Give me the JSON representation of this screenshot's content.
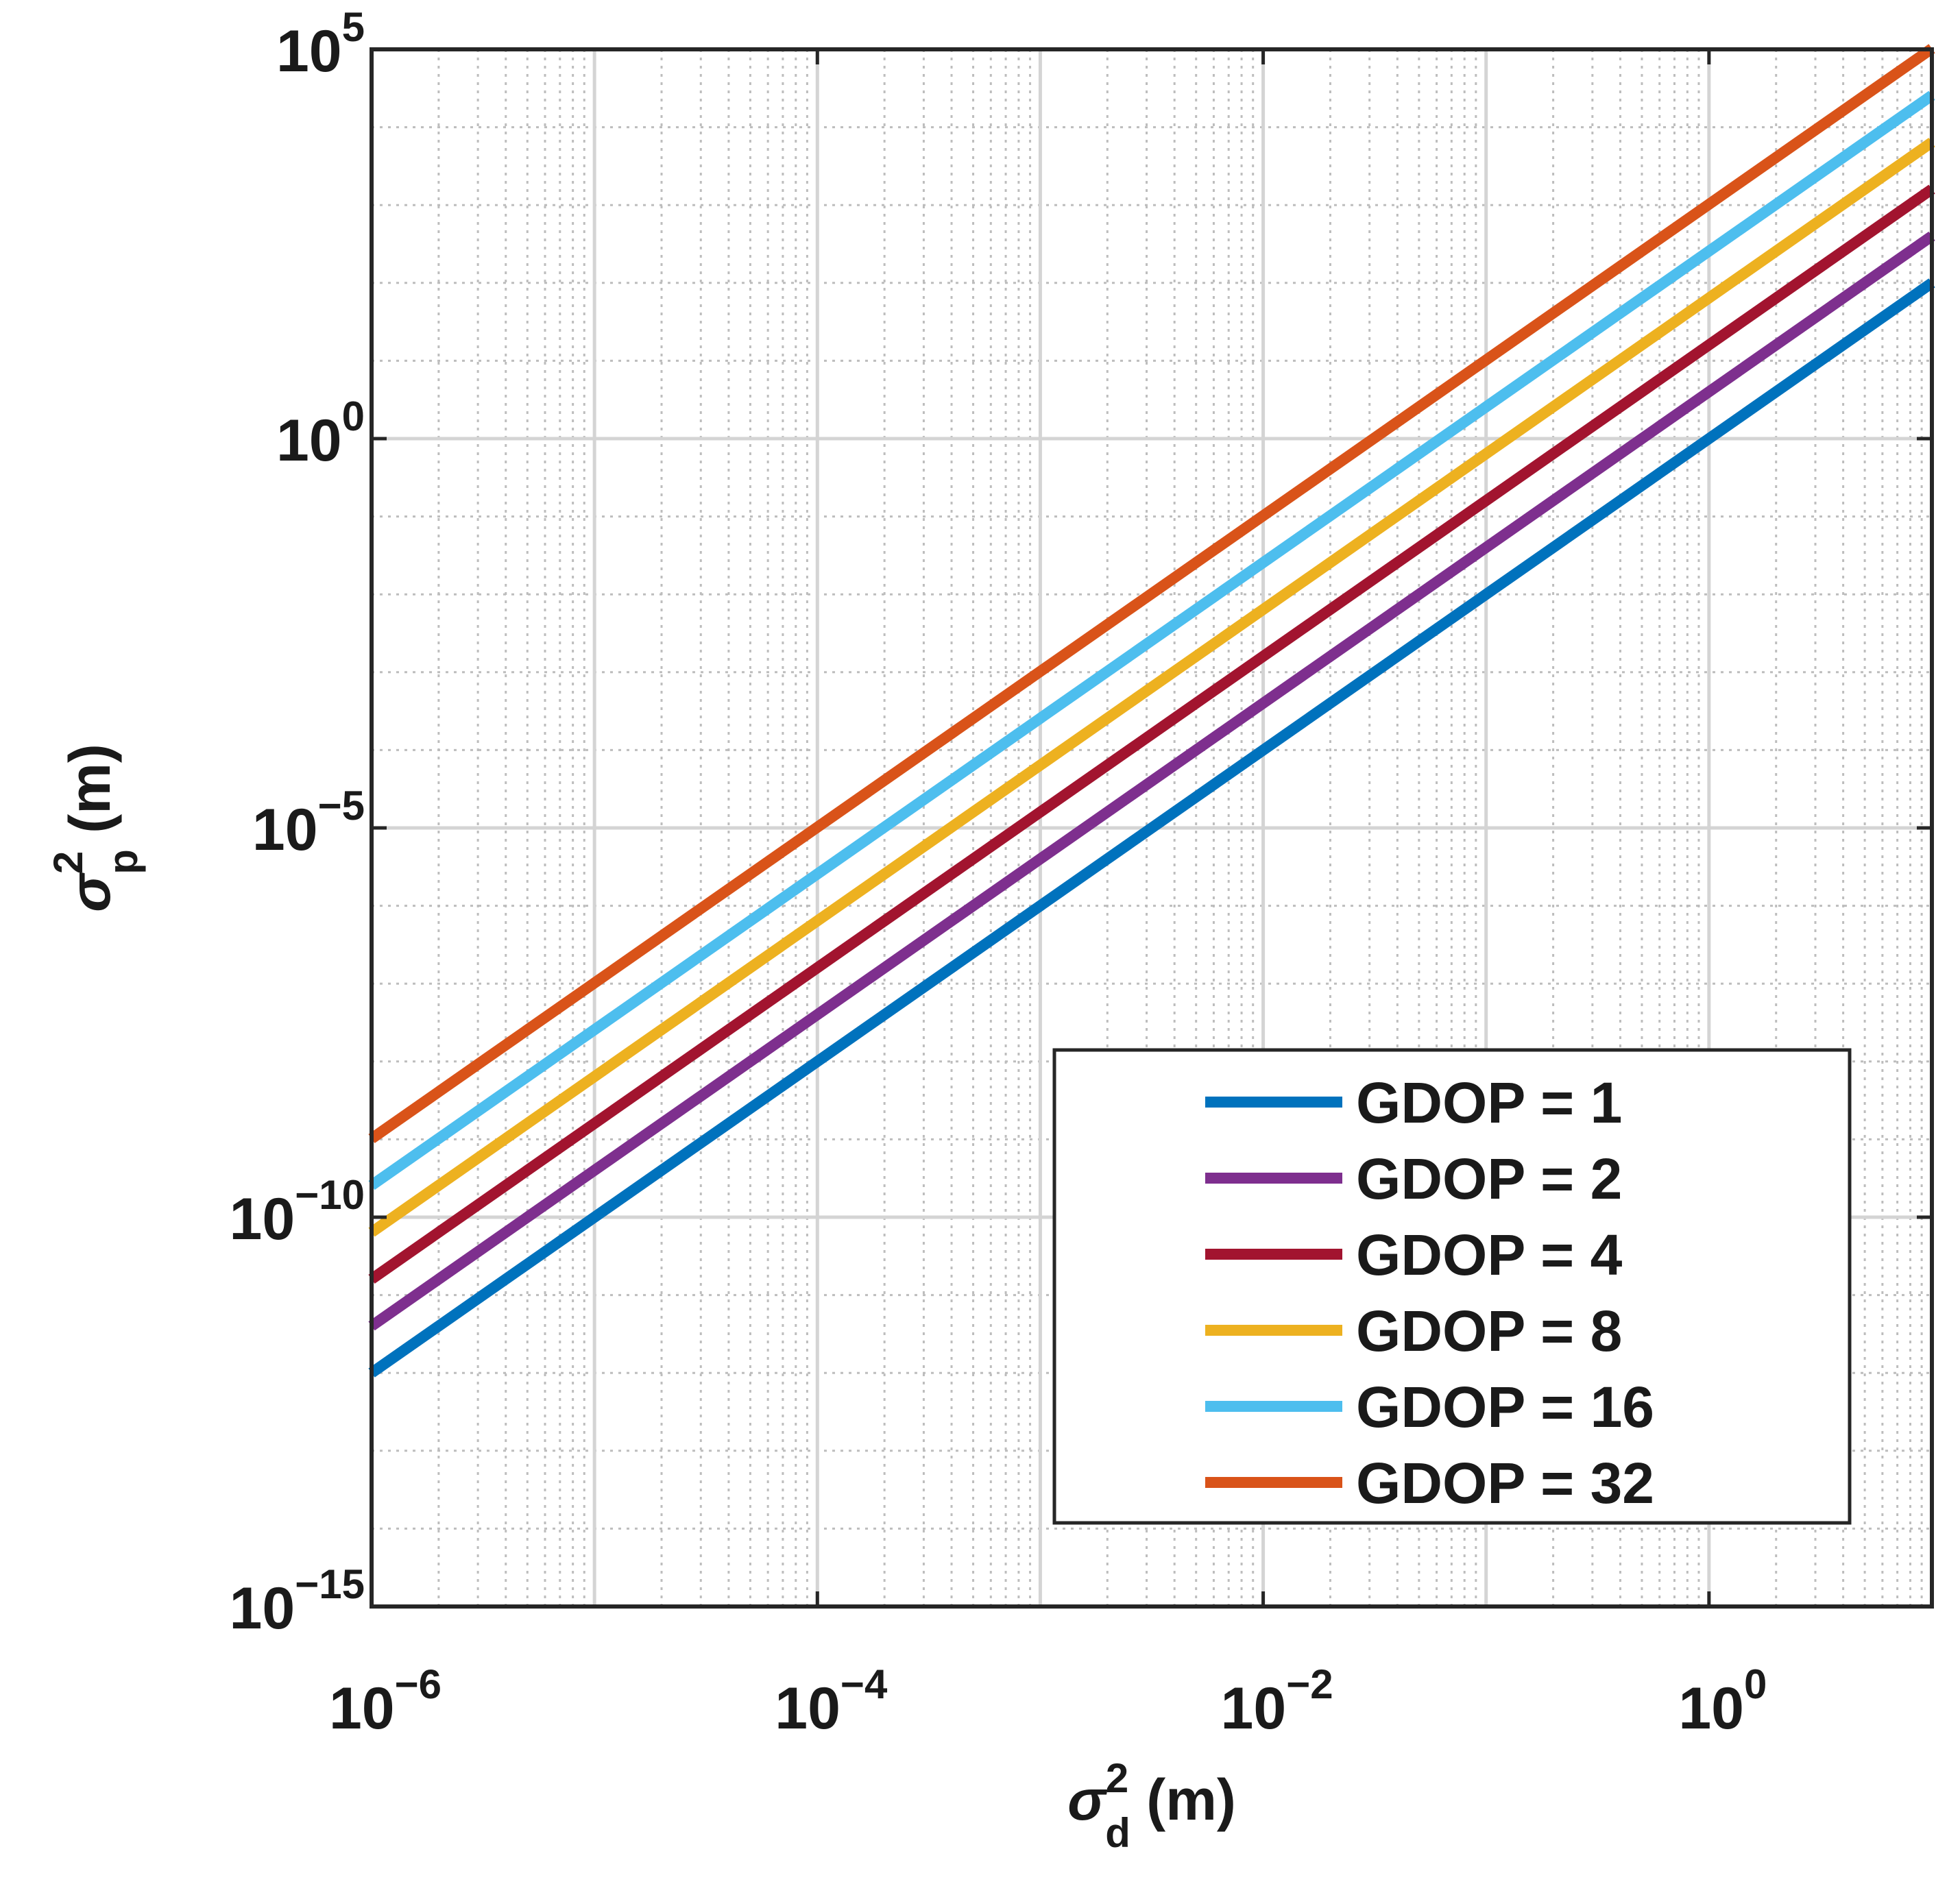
{
  "chart_data": {
    "type": "line",
    "xscale": "log",
    "yscale": "log",
    "xlim": [
      1e-06,
      10
    ],
    "ylim": [
      1e-15,
      100000.0
    ],
    "grid": true,
    "minor_grid": true,
    "legend_position": "bottom-right",
    "xlabel": {
      "symbol": "σ",
      "sup": "2",
      "sub": "d",
      "unit": " (m)"
    },
    "ylabel": {
      "symbol": "σ",
      "sup": "2",
      "sub": "p",
      "unit": " (m)"
    },
    "xticks": [
      {
        "value": 1e-06,
        "base": "10",
        "exp": "−6"
      },
      {
        "value": 0.0001,
        "base": "10",
        "exp": "−4"
      },
      {
        "value": 0.01,
        "base": "10",
        "exp": "−2"
      },
      {
        "value": 1,
        "base": "10",
        "exp": "0"
      }
    ],
    "yticks": [
      {
        "value": 1e-15,
        "base": "10",
        "exp": "−15"
      },
      {
        "value": 1e-10,
        "base": "10",
        "exp": "−10"
      },
      {
        "value": 1e-05,
        "base": "10",
        "exp": "−5"
      },
      {
        "value": 1,
        "base": "10",
        "exp": "0"
      },
      {
        "value": 100000.0,
        "base": "10",
        "exp": "5"
      }
    ],
    "series": [
      {
        "name": "GDOP = 1",
        "color": "#0072BD",
        "x": [
          1e-06,
          10
        ],
        "y": [
          1e-12,
          100
        ]
      },
      {
        "name": "GDOP = 2",
        "color": "#7E2F8E",
        "x": [
          1e-06,
          10
        ],
        "y": [
          4e-12,
          400
        ]
      },
      {
        "name": "GDOP = 4",
        "color": "#A2142F",
        "x": [
          1e-06,
          10
        ],
        "y": [
          1.6e-11,
          1600
        ]
      },
      {
        "name": "GDOP = 8",
        "color": "#EDB120",
        "x": [
          1e-06,
          10
        ],
        "y": [
          6.4e-11,
          6400
        ]
      },
      {
        "name": "GDOP = 16",
        "color": "#4DBEEE",
        "x": [
          1e-06,
          10
        ],
        "y": [
          2.56e-10,
          25600
        ]
      },
      {
        "name": "GDOP = 32",
        "color": "#D95319",
        "x": [
          1e-06,
          10
        ],
        "y": [
          1.02e-09,
          102400
        ]
      }
    ]
  }
}
